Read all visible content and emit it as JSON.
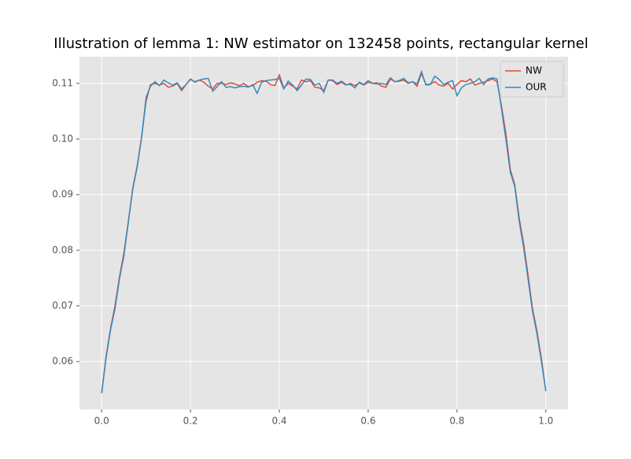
{
  "chart_data": {
    "type": "line",
    "title": "Illustration of lemma 1: NW estimator on 132458 points, rectangular kernel",
    "x": [
      0,
      0.01,
      0.02,
      0.03,
      0.04,
      0.05,
      0.06,
      0.07,
      0.08,
      0.09,
      0.1,
      0.11,
      0.12,
      0.13,
      0.14,
      0.15,
      0.16,
      0.17,
      0.18,
      0.19,
      0.2,
      0.21,
      0.22,
      0.23,
      0.24,
      0.25,
      0.26,
      0.27,
      0.28,
      0.29,
      0.3,
      0.31,
      0.32,
      0.33,
      0.34,
      0.35,
      0.36,
      0.37,
      0.38,
      0.39,
      0.4,
      0.41,
      0.42,
      0.43,
      0.44,
      0.45,
      0.46,
      0.47,
      0.48,
      0.49,
      0.5,
      0.51,
      0.52,
      0.53,
      0.54,
      0.55,
      0.56,
      0.57,
      0.58,
      0.59,
      0.6,
      0.61,
      0.62,
      0.63,
      0.64,
      0.65,
      0.66,
      0.67,
      0.68,
      0.69,
      0.7,
      0.71,
      0.72,
      0.73,
      0.74,
      0.75,
      0.76,
      0.77,
      0.78,
      0.79,
      0.8,
      0.81,
      0.82,
      0.83,
      0.84,
      0.85,
      0.86,
      0.87,
      0.88,
      0.89,
      0.9,
      0.91,
      0.92,
      0.93,
      0.94,
      0.95,
      0.96,
      0.97,
      0.98,
      0.99,
      1
    ],
    "series": [
      {
        "name": "NW",
        "color": "#E24A33",
        "values": [
          0.0543,
          0.061,
          0.066,
          0.07,
          0.0752,
          0.0795,
          0.0852,
          0.0912,
          0.0952,
          0.1005,
          0.1068,
          0.1098,
          0.11,
          0.1097,
          0.11,
          0.1093,
          0.1095,
          0.11,
          0.1087,
          0.1098,
          0.1107,
          0.1103,
          0.1106,
          0.1102,
          0.1095,
          0.109,
          0.11,
          0.11,
          0.1098,
          0.1101,
          0.1099,
          0.1096,
          0.11,
          0.1094,
          0.1096,
          0.1102,
          0.1105,
          0.1104,
          0.1098,
          0.1096,
          0.1115,
          0.1092,
          0.11,
          0.1095,
          0.109,
          0.1106,
          0.1103,
          0.1105,
          0.1093,
          0.1092,
          0.1087,
          0.1106,
          0.1105,
          0.1098,
          0.1102,
          0.1097,
          0.11,
          0.1096,
          0.1101,
          0.1097,
          0.1102,
          0.11,
          0.1101,
          0.1095,
          0.1093,
          0.1108,
          0.1103,
          0.1104,
          0.1106,
          0.11,
          0.1103,
          0.1095,
          0.1118,
          0.1098,
          0.1099,
          0.1103,
          0.1097,
          0.1095,
          0.11,
          0.109,
          0.1098,
          0.1105,
          0.1103,
          0.1108,
          0.1097,
          0.11,
          0.1102,
          0.1105,
          0.1108,
          0.1103,
          0.106,
          0.101,
          0.0945,
          0.0918,
          0.0858,
          0.0812,
          0.0755,
          0.0695,
          0.0655,
          0.0605,
          0.0547
        ]
      },
      {
        "name": "OUR",
        "color": "#348ABD",
        "values": [
          0.0543,
          0.0607,
          0.0657,
          0.0695,
          0.0748,
          0.079,
          0.085,
          0.091,
          0.095,
          0.1003,
          0.1075,
          0.1095,
          0.1103,
          0.1096,
          0.1106,
          0.1101,
          0.1097,
          0.1101,
          0.109,
          0.1098,
          0.1108,
          0.1102,
          0.1106,
          0.1108,
          0.1109,
          0.1086,
          0.1094,
          0.1103,
          0.1093,
          0.1094,
          0.1092,
          0.1094,
          0.1095,
          0.1093,
          0.1098,
          0.1082,
          0.1102,
          0.1105,
          0.1106,
          0.1107,
          0.1109,
          0.109,
          0.1104,
          0.1097,
          0.1087,
          0.1097,
          0.1108,
          0.1107,
          0.1097,
          0.11,
          0.1084,
          0.1106,
          0.1106,
          0.11,
          0.1104,
          0.1098,
          0.1098,
          0.1092,
          0.1102,
          0.1098,
          0.1105,
          0.11,
          0.1099,
          0.11,
          0.1098,
          0.111,
          0.1103,
          0.1105,
          0.1109,
          0.1101,
          0.1103,
          0.1099,
          0.1121,
          0.1097,
          0.1098,
          0.1113,
          0.1107,
          0.1098,
          0.1102,
          0.1105,
          0.1078,
          0.1092,
          0.1098,
          0.11,
          0.1103,
          0.1109,
          0.1098,
          0.1108,
          0.111,
          0.1108,
          0.1055,
          0.1,
          0.094,
          0.0915,
          0.0852,
          0.0805,
          0.0748,
          0.069,
          0.065,
          0.06,
          0.0547
        ]
      }
    ],
    "xlim": [
      -0.05,
      1.05
    ],
    "xticks": [
      {
        "value": 0,
        "label": "0.0"
      },
      0.2,
      0.4,
      0.6,
      0.8,
      {
        "value": 1,
        "label": "1.0"
      }
    ],
    "ylim": [
      0.0514,
      0.1148
    ],
    "yticks": [
      {
        "value": 0.06,
        "label": "0.06"
      },
      {
        "value": 0.07,
        "label": "0.07"
      },
      {
        "value": 0.08,
        "label": "0.08"
      },
      {
        "value": 0.09,
        "label": "0.09"
      },
      {
        "value": 0.1,
        "label": "0.10"
      },
      0.11
    ],
    "grid": true,
    "legend": "upper right"
  }
}
